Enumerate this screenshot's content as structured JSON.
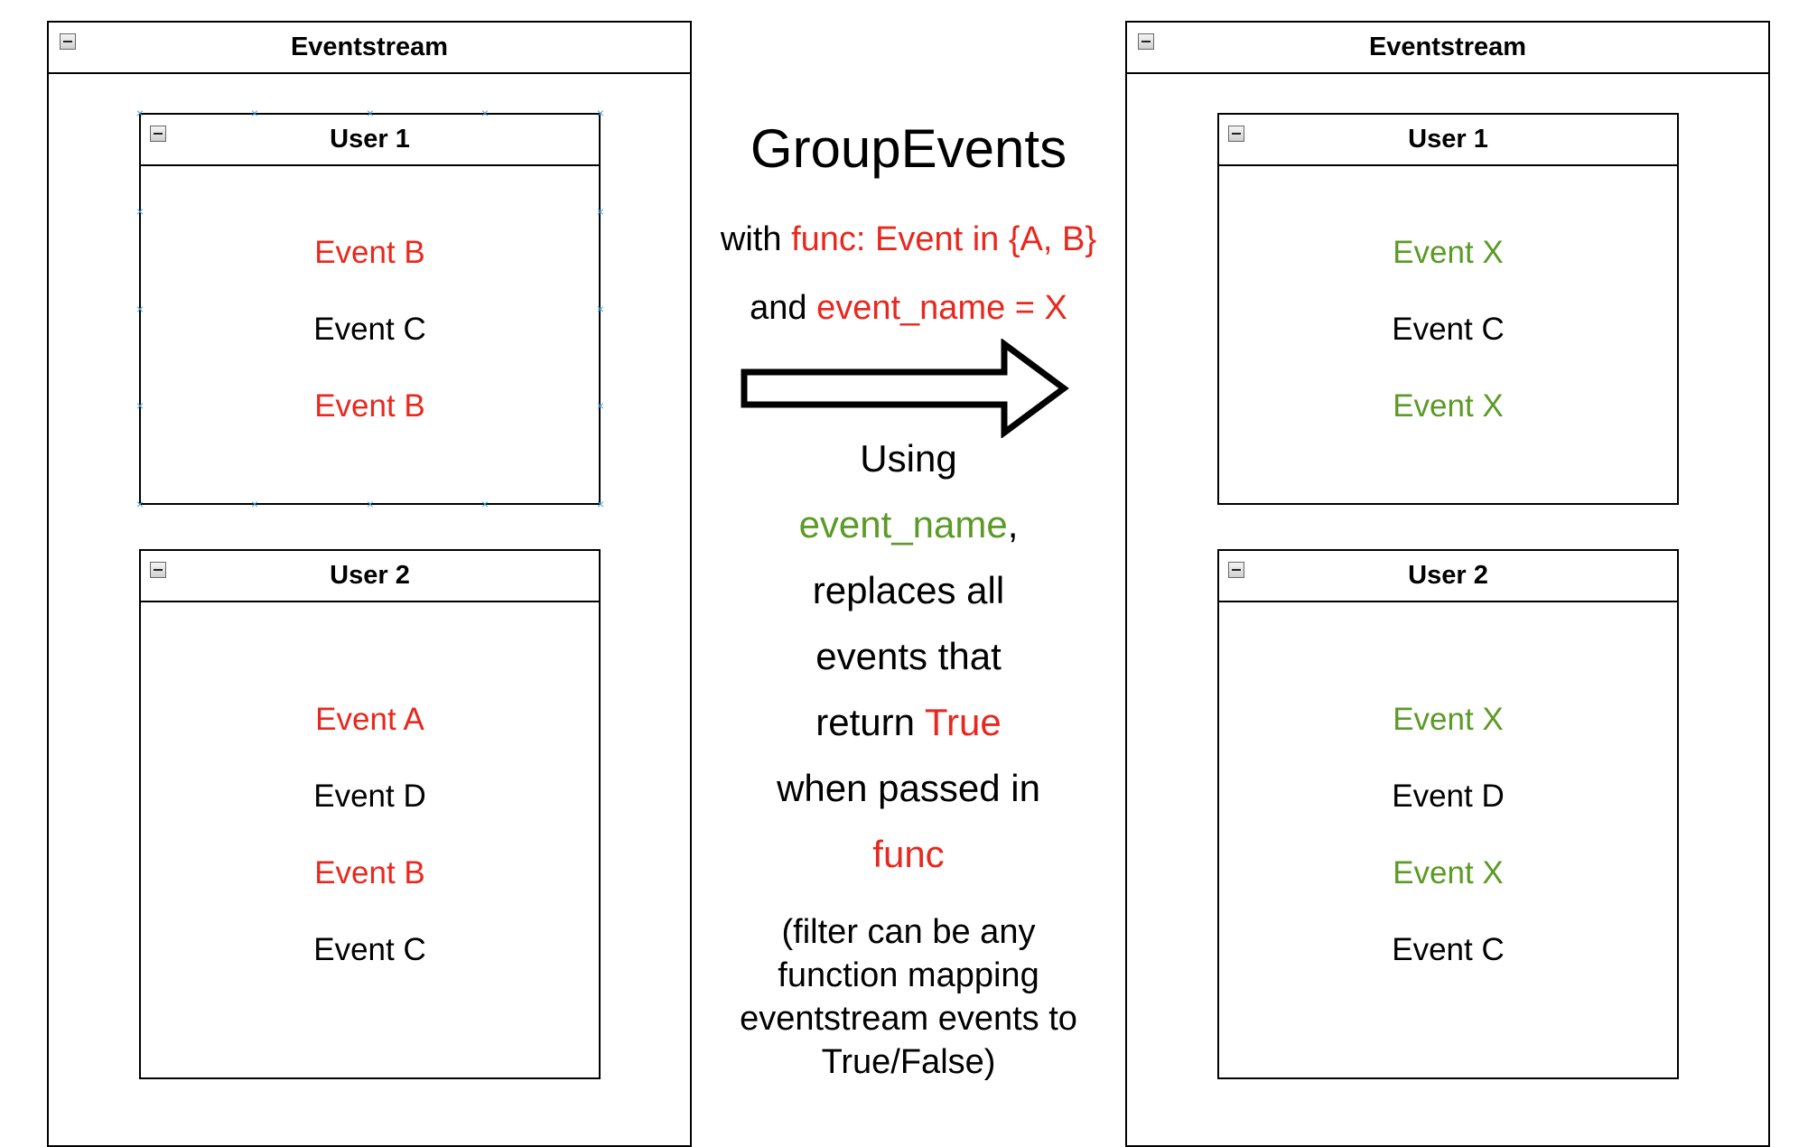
{
  "left": {
    "title": "Eventstream",
    "users": [
      {
        "title": "User 1",
        "events": [
          {
            "label": "Event B",
            "color": "#e8281e"
          },
          {
            "label": "Event C",
            "color": "#000000"
          },
          {
            "label": "Event B",
            "color": "#e8281e"
          }
        ]
      },
      {
        "title": "User 2",
        "events": [
          {
            "label": "Event A",
            "color": "#e8281e"
          },
          {
            "label": "Event D",
            "color": "#000000"
          },
          {
            "label": "Event B",
            "color": "#e8281e"
          },
          {
            "label": "Event C",
            "color": "#000000"
          }
        ]
      }
    ]
  },
  "right": {
    "title": "Eventstream",
    "users": [
      {
        "title": "User 1",
        "events": [
          {
            "label": "Event X",
            "color": "#5b9a26"
          },
          {
            "label": "Event C",
            "color": "#000000"
          },
          {
            "label": "Event X",
            "color": "#5b9a26"
          }
        ]
      },
      {
        "title": "User 2",
        "events": [
          {
            "label": "Event X",
            "color": "#5b9a26"
          },
          {
            "label": "Event D",
            "color": "#000000"
          },
          {
            "label": "Event X",
            "color": "#5b9a26"
          },
          {
            "label": "Event C",
            "color": "#000000"
          }
        ]
      }
    ]
  },
  "middle": {
    "title": "GroupEvents",
    "line1_prefix": "with ",
    "line1_highlight": "func: Event in {A, B}",
    "line2_prefix": "and ",
    "line2_highlight": "event_name = X",
    "desc_1": "Using",
    "desc_2_highlight": "event_name",
    "desc_2_suffix": ",",
    "desc_3": "replaces all",
    "desc_4": "events that",
    "desc_5_prefix": "return ",
    "desc_5_highlight": "True",
    "desc_6": "when passed in",
    "desc_7_highlight": "func",
    "note_1": "(filter can be any",
    "note_2": "function mapping",
    "note_3": "eventstream events to",
    "note_4": "True/False)"
  },
  "colors": {
    "highlight_red": "#e8281e",
    "highlight_green": "#5b9a26",
    "selection_marker": "#4aa3df"
  },
  "icons": {
    "collapse": "minus-box-icon",
    "arrow": "right-arrow-icon",
    "selection": "selection-handle-icon"
  }
}
